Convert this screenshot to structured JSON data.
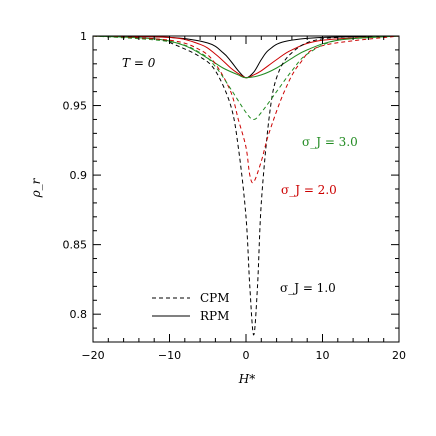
{
  "chart_data": {
    "type": "line",
    "title": "",
    "xlabel": "H*",
    "ylabel": "ρ_r",
    "xlim": [
      -20,
      20
    ],
    "ylim": [
      0.78,
      1.0
    ],
    "x_ticks": [
      -20,
      -10,
      0,
      10,
      20
    ],
    "x_tick_labels": [
      "−20",
      "−10",
      "0",
      "10",
      "20"
    ],
    "y_ticks": [
      0.8,
      0.85,
      0.9,
      0.95,
      1.0
    ],
    "y_tick_labels": [
      "0.8",
      "0.85",
      "0.9",
      "0.95",
      "1"
    ],
    "grid": false,
    "legend_position": "bottom-center",
    "legend": [
      {
        "label": "CPM",
        "style": "dashed"
      },
      {
        "label": "RPM",
        "style": "solid"
      }
    ],
    "annotations": {
      "temperature": "T = 0",
      "sigma_30": "σ_J = 3.0",
      "sigma_20": "σ_J = 2.0",
      "sigma_10": "σ_J = 1.0"
    },
    "colors": {
      "sigma_1": "#000000",
      "sigma_2": "#cc0000",
      "sigma_3": "#228b22"
    },
    "series": [
      {
        "sigma": 1.0,
        "method": "RPM",
        "style": "solid",
        "color": "#000000",
        "points": [
          [
            -20,
            1.0
          ],
          [
            -10,
            0.999
          ],
          [
            -5,
            0.995
          ],
          [
            -3,
            0.988
          ],
          [
            -2,
            0.982
          ],
          [
            -1,
            0.975
          ],
          [
            0,
            0.97
          ],
          [
            1,
            0.974
          ],
          [
            2,
            0.983
          ],
          [
            3,
            0.99
          ],
          [
            5,
            0.996
          ],
          [
            10,
            0.999
          ],
          [
            20,
            1.0
          ]
        ]
      },
      {
        "sigma": 2.0,
        "method": "RPM",
        "style": "solid",
        "color": "#cc0000",
        "points": [
          [
            -20,
            1.0
          ],
          [
            -10,
            0.999
          ],
          [
            -6,
            0.994
          ],
          [
            -4,
            0.987
          ],
          [
            -2,
            0.977
          ],
          [
            -1,
            0.973
          ],
          [
            0,
            0.97
          ],
          [
            1,
            0.972
          ],
          [
            2,
            0.975
          ],
          [
            4,
            0.983
          ],
          [
            6,
            0.99
          ],
          [
            10,
            0.997
          ],
          [
            20,
            1.0
          ]
        ]
      },
      {
        "sigma": 3.0,
        "method": "RPM",
        "style": "solid",
        "color": "#228b22",
        "points": [
          [
            -20,
            1.0
          ],
          [
            -12,
            0.998
          ],
          [
            -8,
            0.993
          ],
          [
            -5,
            0.984
          ],
          [
            -3,
            0.977
          ],
          [
            -1,
            0.972
          ],
          [
            0,
            0.97
          ],
          [
            2,
            0.972
          ],
          [
            4,
            0.977
          ],
          [
            6,
            0.984
          ],
          [
            8,
            0.99
          ],
          [
            12,
            0.997
          ],
          [
            20,
            1.0
          ]
        ]
      },
      {
        "sigma": 1.0,
        "method": "CPM",
        "style": "dashed",
        "color": "#000000",
        "points": [
          [
            -20,
            1.0
          ],
          [
            -12,
            0.998
          ],
          [
            -9,
            0.993
          ],
          [
            -6,
            0.985
          ],
          [
            -4,
            0.975
          ],
          [
            -2,
            0.95
          ],
          [
            -1,
            0.92
          ],
          [
            0,
            0.87
          ],
          [
            0.5,
            0.82
          ],
          [
            1,
            0.785
          ],
          [
            1.5,
            0.82
          ],
          [
            2,
            0.88
          ],
          [
            3,
            0.94
          ],
          [
            4,
            0.97
          ],
          [
            6,
            0.988
          ],
          [
            10,
            0.998
          ],
          [
            20,
            1.0
          ]
        ]
      },
      {
        "sigma": 2.0,
        "method": "CPM",
        "style": "dashed",
        "color": "#cc0000",
        "points": [
          [
            -20,
            1.0
          ],
          [
            -10,
            0.997
          ],
          [
            -6,
            0.99
          ],
          [
            -4,
            0.98
          ],
          [
            -2,
            0.96
          ],
          [
            -1,
            0.94
          ],
          [
            0,
            0.92
          ],
          [
            0.5,
            0.9
          ],
          [
            1,
            0.895
          ],
          [
            2,
            0.91
          ],
          [
            3,
            0.93
          ],
          [
            5,
            0.96
          ],
          [
            7,
            0.98
          ],
          [
            10,
            0.993
          ],
          [
            20,
            1.0
          ]
        ]
      },
      {
        "sigma": 3.0,
        "method": "CPM",
        "style": "dashed",
        "color": "#228b22",
        "points": [
          [
            -20,
            1.0
          ],
          [
            -10,
            0.996
          ],
          [
            -6,
            0.988
          ],
          [
            -4,
            0.978
          ],
          [
            -2,
            0.962
          ],
          [
            0,
            0.945
          ],
          [
            1,
            0.94
          ],
          [
            2,
            0.945
          ],
          [
            4,
            0.96
          ],
          [
            6,
            0.975
          ],
          [
            8,
            0.987
          ],
          [
            12,
            0.997
          ],
          [
            20,
            1.0
          ]
        ]
      }
    ]
  }
}
